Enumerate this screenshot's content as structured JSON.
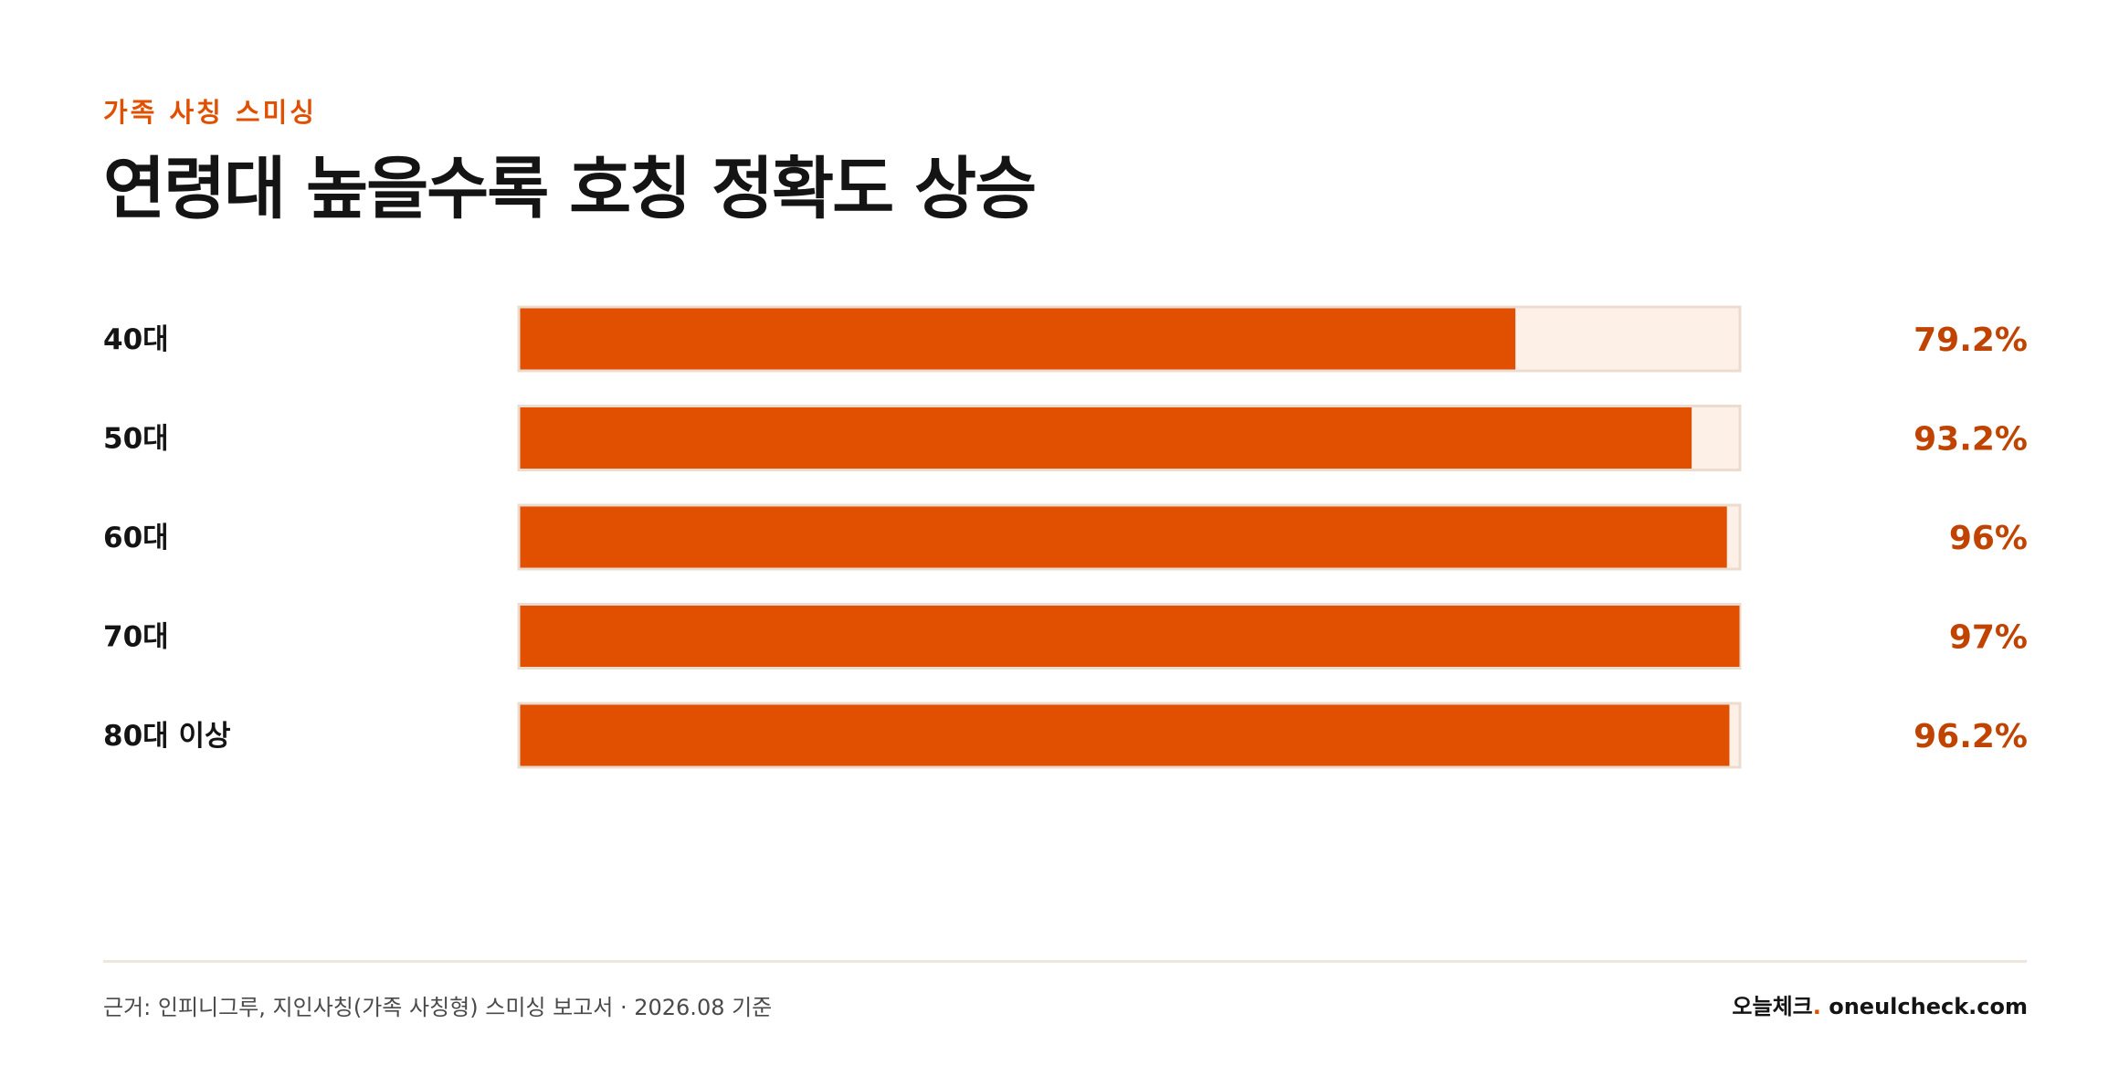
{
  "header": {
    "eyebrow": "가족 사칭 스미싱",
    "title": "연령대 높을수록 호칭 정확도 상승"
  },
  "footer": {
    "source": "근거: 인피니그루, 지인사칭(가족 사칭형) 스미싱 보고서 · 2026.08 기준",
    "brand_name": "오늘체크",
    "brand_dot": ".",
    "brand_domain": "oneulcheck.com"
  },
  "colors": {
    "accent": "#e05000",
    "track": "#fdf1e7",
    "track_border": "#ecdcd0",
    "value_text": "#c04400"
  },
  "chart_data": {
    "type": "bar",
    "orientation": "horizontal",
    "categories": [
      "40대",
      "50대",
      "60대",
      "70대",
      "80대 이상"
    ],
    "values": [
      79.2,
      93.2,
      96,
      97,
      96.2
    ],
    "value_labels": [
      "79.2%",
      "93.2%",
      "96%",
      "97%",
      "96.2%"
    ],
    "xlim": [
      0,
      97
    ],
    "grid": false,
    "legend": "none"
  }
}
